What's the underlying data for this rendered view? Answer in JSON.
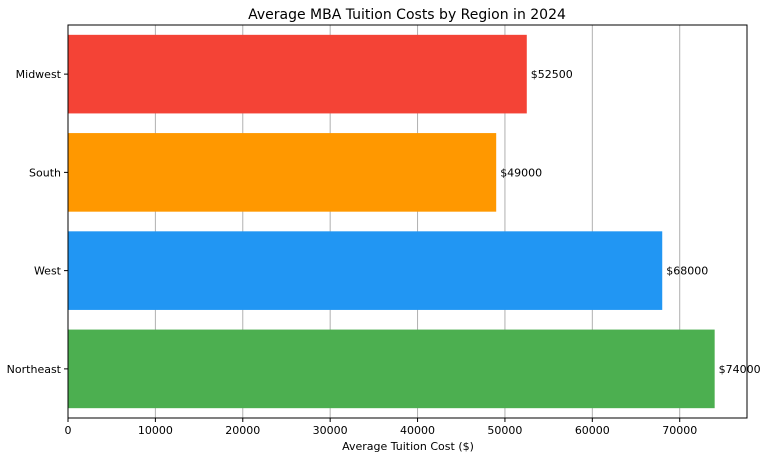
{
  "chart_data": {
    "type": "bar",
    "orientation": "horizontal",
    "title": "Average MBA Tuition Costs by Region in 2024",
    "xlabel": "Average Tuition Cost ($)",
    "ylabel": "",
    "categories": [
      "Northeast",
      "West",
      "South",
      "Midwest"
    ],
    "values": [
      74000,
      68000,
      49000,
      52500
    ],
    "value_labels": [
      "$74000",
      "$68000",
      "$49000",
      "$52500"
    ],
    "colors": [
      "#4caf50",
      "#2196f3",
      "#ff9800",
      "#f44336"
    ],
    "xlim": [
      0,
      77700
    ],
    "xticks": [
      0,
      10000,
      20000,
      30000,
      40000,
      50000,
      60000,
      70000
    ],
    "xtick_labels": [
      "0",
      "10000",
      "20000",
      "30000",
      "40000",
      "50000",
      "60000",
      "70000"
    ],
    "grid": "x"
  }
}
